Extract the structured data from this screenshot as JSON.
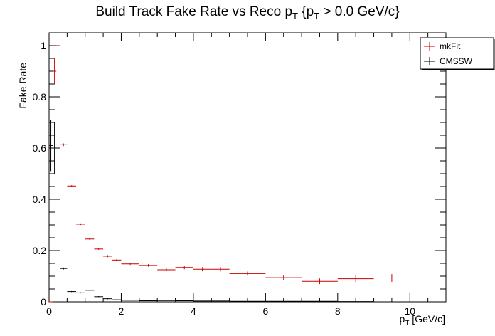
{
  "chart_data": {
    "type": "scatter",
    "title": "Build Track Fake Rate vs Reco p_{T} {p_{T} > 0.0 GeV/c}",
    "title_display": {
      "main": "Build Track Fake Rate vs Reco p",
      "sub": "T",
      "rest": " {p",
      "sub2": "T",
      "rest2": " > 0.0 GeV/c}"
    },
    "xlabel_display": {
      "main": "p",
      "sub": "T",
      "rest": " [GeV/c]"
    },
    "xlabel": "p_{T} [GeV/c]",
    "ylabel": "Fake Rate",
    "xlim": [
      0,
      11
    ],
    "ylim": [
      0,
      1.05
    ],
    "xticks": [
      0,
      2,
      4,
      6,
      8,
      10
    ],
    "yticks": [
      0,
      0.2,
      0.4,
      0.6,
      0.8,
      1
    ],
    "ytick_labels": [
      "0",
      "0.2",
      "0.4",
      "0.6",
      "0.8",
      "1"
    ],
    "legend_position": "top-right",
    "series": [
      {
        "name": "mkFit",
        "color": "#cc0000",
        "points": [
          {
            "xlo": 0.0,
            "xhi": 0.1,
            "y": 0.0,
            "err": 0.0
          },
          {
            "xlo": 0.1,
            "xhi": 0.2,
            "y": 0.9,
            "err": 0.05
          },
          {
            "xlo": 0.2,
            "xhi": 0.3,
            "y": 1.0,
            "err": 0.0
          },
          {
            "xlo": 0.3,
            "xhi": 0.5,
            "y": 0.613,
            "err": 0.005
          },
          {
            "xlo": 0.5,
            "xhi": 0.75,
            "y": 0.452,
            "err": 0.003
          },
          {
            "xlo": 0.75,
            "xhi": 1.0,
            "y": 0.303,
            "err": 0.003
          },
          {
            "xlo": 1.0,
            "xhi": 1.25,
            "y": 0.245,
            "err": 0.003
          },
          {
            "xlo": 1.25,
            "xhi": 1.5,
            "y": 0.206,
            "err": 0.003
          },
          {
            "xlo": 1.5,
            "xhi": 1.75,
            "y": 0.178,
            "err": 0.004
          },
          {
            "xlo": 1.75,
            "xhi": 2.0,
            "y": 0.163,
            "err": 0.004
          },
          {
            "xlo": 2.0,
            "xhi": 2.5,
            "y": 0.148,
            "err": 0.004
          },
          {
            "xlo": 2.5,
            "xhi": 3.0,
            "y": 0.142,
            "err": 0.005
          },
          {
            "xlo": 3.0,
            "xhi": 3.5,
            "y": 0.125,
            "err": 0.006
          },
          {
            "xlo": 3.5,
            "xhi": 4.0,
            "y": 0.134,
            "err": 0.007
          },
          {
            "xlo": 4.0,
            "xhi": 4.5,
            "y": 0.127,
            "err": 0.008
          },
          {
            "xlo": 4.5,
            "xhi": 5.0,
            "y": 0.127,
            "err": 0.009
          },
          {
            "xlo": 5.0,
            "xhi": 6.0,
            "y": 0.11,
            "err": 0.008
          },
          {
            "xlo": 6.0,
            "xhi": 7.0,
            "y": 0.094,
            "err": 0.009
          },
          {
            "xlo": 7.0,
            "xhi": 8.0,
            "y": 0.08,
            "err": 0.011
          },
          {
            "xlo": 8.0,
            "xhi": 9.0,
            "y": 0.09,
            "err": 0.013
          },
          {
            "xlo": 9.0,
            "xhi": 10.0,
            "y": 0.093,
            "err": 0.015
          }
        ]
      },
      {
        "name": "CMSSW",
        "color": "#000000",
        "points": [
          {
            "xlo": 0.0,
            "xhi": 0.1,
            "y": 0.61,
            "err": 0.1
          },
          {
            "xlo": 0.1,
            "xhi": 0.2,
            "y": 0.6,
            "err": 0.1
          },
          {
            "xlo": 0.2,
            "xhi": 0.3,
            "y": 0.0,
            "err": 0.0
          },
          {
            "xlo": 0.3,
            "xhi": 0.5,
            "y": 0.13,
            "err": 0.004
          },
          {
            "xlo": 0.5,
            "xhi": 0.75,
            "y": 0.04,
            "err": 0.002
          },
          {
            "xlo": 0.75,
            "xhi": 1.0,
            "y": 0.035,
            "err": 0.002
          },
          {
            "xlo": 1.0,
            "xhi": 1.25,
            "y": 0.045,
            "err": 0.002
          },
          {
            "xlo": 1.25,
            "xhi": 1.5,
            "y": 0.02,
            "err": 0.002
          },
          {
            "xlo": 1.5,
            "xhi": 1.75,
            "y": 0.012,
            "err": 0.002
          },
          {
            "xlo": 1.75,
            "xhi": 2.0,
            "y": 0.008,
            "err": 0.002
          },
          {
            "xlo": 2.0,
            "xhi": 2.5,
            "y": 0.006,
            "err": 0.001
          },
          {
            "xlo": 2.5,
            "xhi": 3.0,
            "y": 0.004,
            "err": 0.001
          },
          {
            "xlo": 3.0,
            "xhi": 3.5,
            "y": 0.005,
            "err": 0.001
          },
          {
            "xlo": 3.5,
            "xhi": 4.0,
            "y": 0.004,
            "err": 0.001
          },
          {
            "xlo": 4.0,
            "xhi": 4.5,
            "y": 0.003,
            "err": 0.001
          },
          {
            "xlo": 4.5,
            "xhi": 5.0,
            "y": 0.003,
            "err": 0.001
          },
          {
            "xlo": 5.0,
            "xhi": 6.0,
            "y": 0.002,
            "err": 0.001
          },
          {
            "xlo": 6.0,
            "xhi": 7.0,
            "y": 0.002,
            "err": 0.001
          },
          {
            "xlo": 7.0,
            "xhi": 8.0,
            "y": 0.002,
            "err": 0.001
          },
          {
            "xlo": 8.0,
            "xhi": 9.0,
            "y": 0.001,
            "err": 0.001
          }
        ]
      }
    ]
  }
}
